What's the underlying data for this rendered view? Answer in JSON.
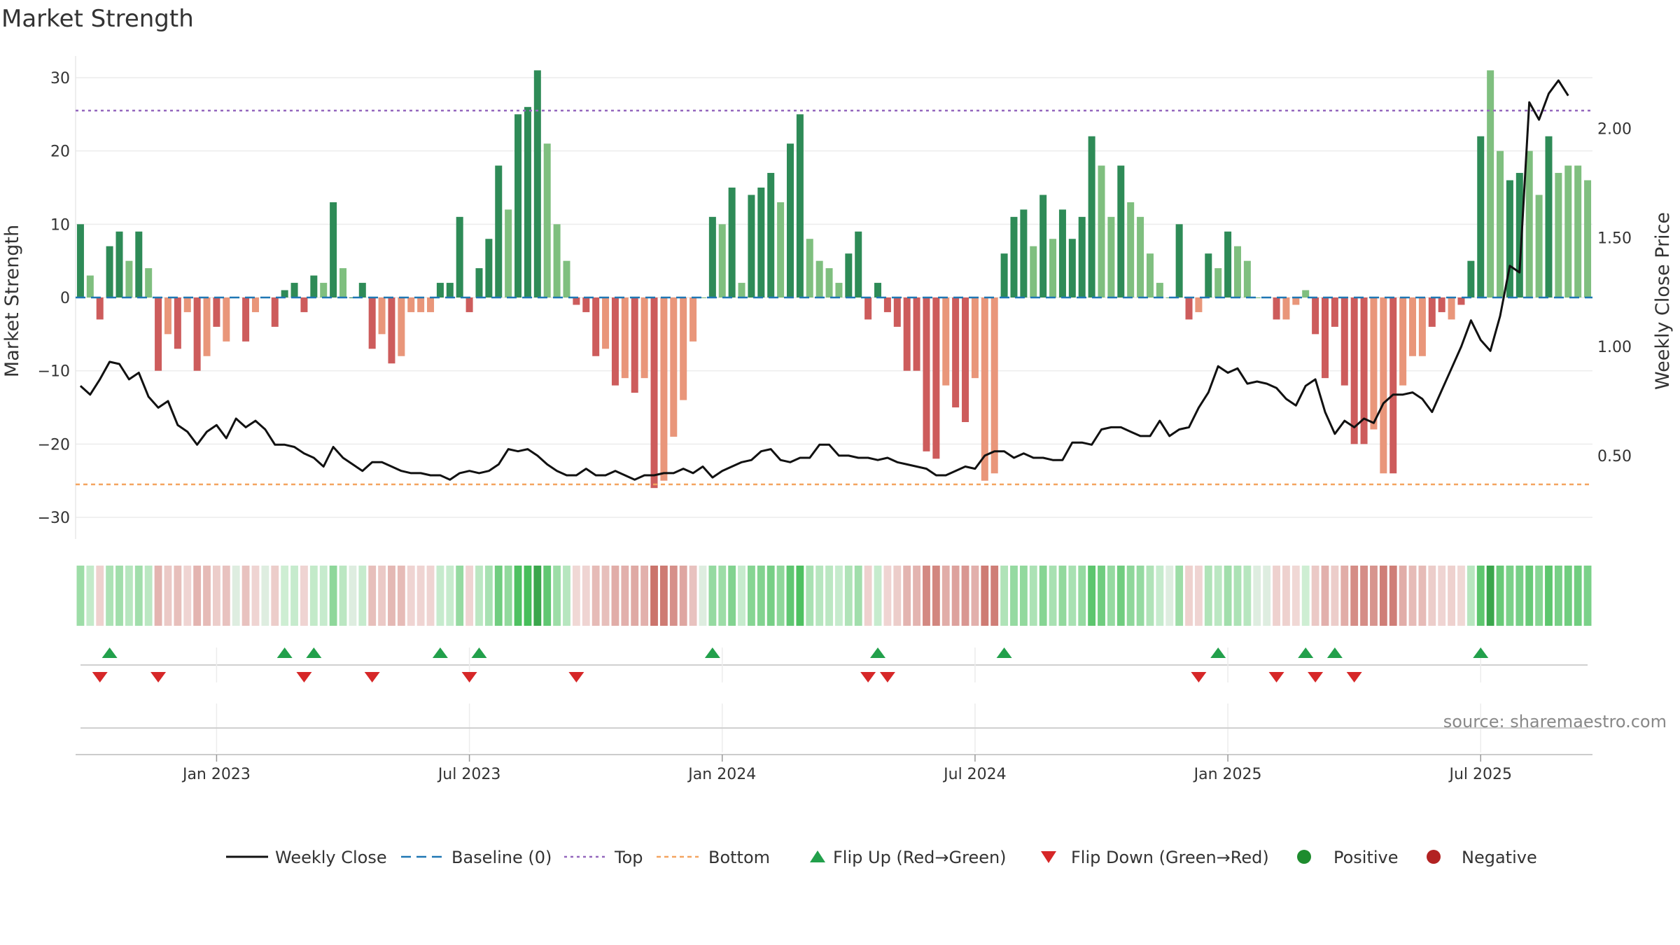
{
  "chart_data": {
    "type": "bar",
    "title": "Market Strength",
    "ylabel": "Market Strength",
    "y2label": "Weekly Close Price",
    "source": "source: sharemaestro.com",
    "ylim": [
      -32,
      32
    ],
    "y2lim": [
      0.15,
      2.3
    ],
    "yticks": [
      "30",
      "20",
      "10",
      "0",
      "−10",
      "−20",
      "−30"
    ],
    "yticks_values": [
      30,
      20,
      10,
      0,
      -10,
      -20,
      -30
    ],
    "y2ticks": [
      "2.00",
      "1.50",
      "1.00",
      "0.50"
    ],
    "y2ticks_values": [
      2.0,
      1.5,
      1.0,
      0.5
    ],
    "xticks": [
      "Jan 2023",
      "Jul 2023",
      "Jan 2024",
      "Jul 2024",
      "Jan 2025",
      "Jul 2025"
    ],
    "xticks_week_index": [
      14,
      40,
      66,
      92,
      118,
      144
    ],
    "top_line": 25.5,
    "bottom_line": -25.5,
    "strength": [
      10,
      3,
      -3,
      7,
      9,
      5,
      9,
      4,
      -10,
      -5,
      -7,
      -2,
      -10,
      -8,
      -4,
      -6,
      0,
      -6,
      -2,
      0,
      -4,
      1,
      2,
      -2,
      3,
      2,
      13,
      4,
      0,
      2,
      -7,
      -5,
      -9,
      -8,
      -2,
      -2,
      -2,
      2,
      2,
      11,
      -2,
      4,
      8,
      18,
      12,
      25,
      26,
      31,
      21,
      10,
      5,
      -1,
      -2,
      -8,
      -7,
      -12,
      -11,
      -13,
      -11,
      -26,
      -25,
      -19,
      -14,
      -6,
      0,
      11,
      10,
      15,
      2,
      14,
      15,
      17,
      13,
      21,
      25,
      8,
      5,
      4,
      2,
      6,
      9,
      -3,
      2,
      -2,
      -4,
      -10,
      -10,
      -21,
      -22,
      -12,
      -15,
      -17,
      -11,
      -25,
      -24,
      6,
      11,
      12,
      7,
      14,
      8,
      12,
      8,
      11,
      22,
      18,
      11,
      18,
      13,
      11,
      6,
      2,
      0,
      10,
      -3,
      -2,
      6,
      4,
      9,
      7,
      5,
      0,
      0,
      -3,
      -3,
      -1,
      1,
      -5,
      -11,
      -4,
      -12,
      -20,
      -20,
      -18,
      -24,
      -24,
      -12,
      -8,
      -8,
      -4,
      -2,
      -3,
      -1,
      5,
      22,
      31,
      20,
      16,
      17,
      20,
      14,
      22,
      17,
      18,
      18,
      16
    ],
    "strength_color_intensity": [
      2,
      1,
      2,
      2,
      2,
      1,
      2,
      1,
      2,
      1,
      2,
      1,
      2,
      1,
      2,
      1,
      1,
      2,
      1,
      1,
      2,
      2,
      2,
      2,
      2,
      1,
      2,
      1,
      2,
      2,
      2,
      1,
      2,
      1,
      1,
      1,
      1,
      2,
      2,
      2,
      2,
      2,
      2,
      2,
      1,
      2,
      2,
      2,
      1,
      1,
      1,
      2,
      2,
      2,
      1,
      2,
      1,
      2,
      1,
      2,
      1,
      1,
      1,
      1,
      1,
      2,
      1,
      2,
      1,
      2,
      2,
      2,
      1,
      2,
      2,
      1,
      1,
      1,
      1,
      2,
      2,
      2,
      2,
      2,
      2,
      2,
      2,
      2,
      2,
      1,
      2,
      2,
      1,
      1,
      1,
      2,
      2,
      2,
      1,
      2,
      1,
      2,
      2,
      2,
      2,
      1,
      1,
      2,
      1,
      1,
      1,
      1,
      1,
      2,
      2,
      1,
      2,
      1,
      2,
      1,
      1,
      1,
      1,
      2,
      1,
      1,
      1,
      2,
      2,
      2,
      2,
      2,
      2,
      1,
      1,
      2,
      1,
      1,
      1,
      2,
      2,
      1,
      2,
      2,
      2,
      1,
      1,
      2,
      2,
      1,
      1,
      2,
      1,
      1
    ],
    "price": [
      0.82,
      0.78,
      0.85,
      0.93,
      0.92,
      0.85,
      0.88,
      0.77,
      0.72,
      0.75,
      0.64,
      0.61,
      0.55,
      0.61,
      0.64,
      0.58,
      0.67,
      0.63,
      0.66,
      0.62,
      0.55,
      0.55,
      0.54,
      0.51,
      0.49,
      0.45,
      0.54,
      0.49,
      0.46,
      0.43,
      0.47,
      0.47,
      0.45,
      0.43,
      0.42,
      0.42,
      0.41,
      0.41,
      0.39,
      0.42,
      0.43,
      0.42,
      0.43,
      0.46,
      0.53,
      0.52,
      0.53,
      0.5,
      0.46,
      0.43,
      0.41,
      0.41,
      0.44,
      0.41,
      0.41,
      0.43,
      0.41,
      0.39,
      0.41,
      0.41,
      0.42,
      0.42,
      0.44,
      0.42,
      0.45,
      0.4,
      0.43,
      0.45,
      0.47,
      0.48,
      0.52,
      0.53,
      0.48,
      0.47,
      0.49,
      0.49,
      0.55,
      0.55,
      0.5,
      0.5,
      0.49,
      0.49,
      0.48,
      0.49,
      0.47,
      0.46,
      0.45,
      0.44,
      0.41,
      0.41,
      0.43,
      0.45,
      0.44,
      0.5,
      0.52,
      0.52,
      0.49,
      0.51,
      0.49,
      0.49,
      0.48,
      0.48,
      0.56,
      0.56,
      0.55,
      0.62,
      0.63,
      0.63,
      0.61,
      0.59,
      0.59,
      0.66,
      0.59,
      0.62,
      0.63,
      0.72,
      0.79,
      0.91,
      0.88,
      0.9,
      0.83,
      0.84,
      0.83,
      0.81,
      0.76,
      0.73,
      0.82,
      0.85,
      0.7,
      0.6,
      0.66,
      0.63,
      0.67,
      0.65,
      0.74,
      0.78,
      0.78,
      0.79,
      0.76,
      0.7,
      0.8,
      0.9,
      1.0,
      1.12,
      1.03,
      0.98,
      1.14,
      1.37,
      1.34,
      2.12,
      2.04,
      2.16,
      2.22,
      2.15
    ],
    "flip_up_week_index": [
      3,
      21,
      24,
      37,
      41,
      65,
      82,
      95,
      117,
      126,
      129,
      144
    ],
    "flip_down_week_index": [
      2,
      8,
      23,
      30,
      40,
      51,
      81,
      83,
      115,
      123,
      127,
      131
    ],
    "legend": [
      "Weekly Close",
      "Baseline (0)",
      "Top",
      "Bottom",
      "Flip Up (Red→Green)",
      "Flip Down (Green→Red)",
      "Positive",
      "Negative"
    ],
    "colors": {
      "pos_strong": "#2e8b57",
      "pos_weak": "#7fbf7f",
      "neg_strong": "#cd5c5c",
      "neg_weak": "#e9967a",
      "price_line": "#111111",
      "baseline": "#1f77b4",
      "top": "#9467bd",
      "bottom": "#f4a460",
      "flip_up": "#22a04b",
      "flip_down": "#d62728",
      "positive_dot": "#1e8c2e",
      "negative_dot": "#b22222"
    }
  }
}
